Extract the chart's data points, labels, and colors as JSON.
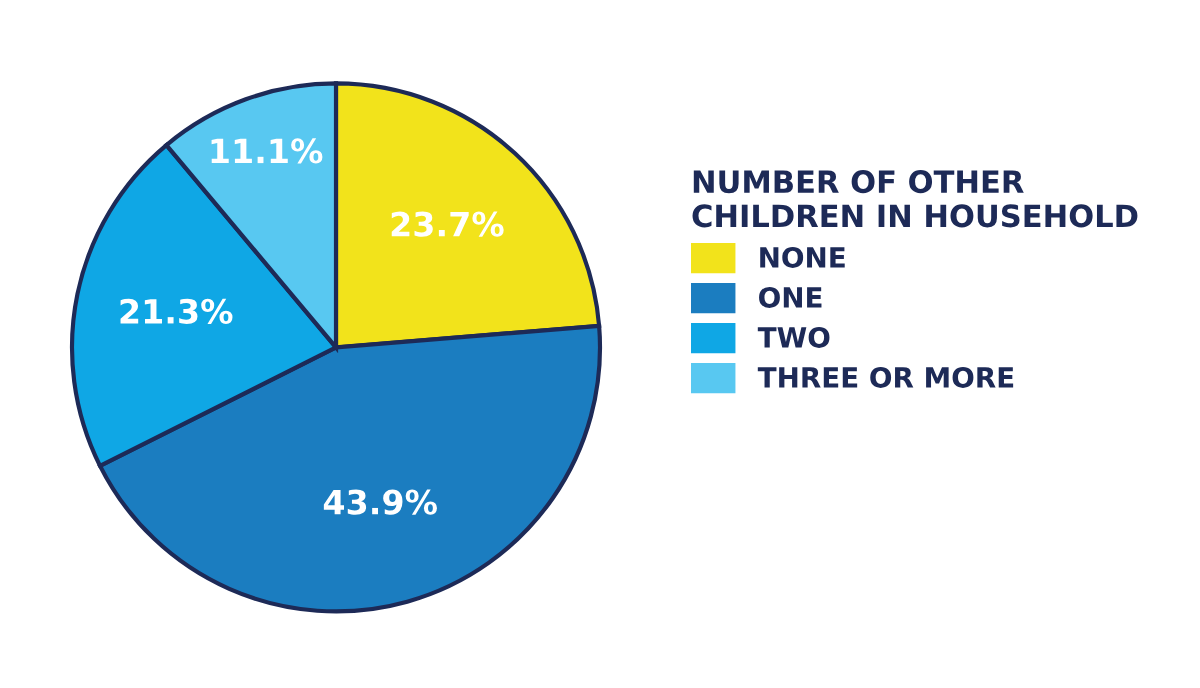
{
  "chart_data": {
    "type": "pie",
    "legend_title": "NUMBER OF OTHER\nCHILDREN IN HOUSEHOLD",
    "categories": [
      "NONE",
      "ONE",
      "TWO",
      "THREE OR MORE"
    ],
    "values": [
      23.7,
      43.9,
      21.3,
      11.1
    ],
    "colors": [
      "#f2e31b",
      "#1b7dc0",
      "#0fa7e5",
      "#58c8f1"
    ],
    "value_labels": [
      "23.7%",
      "43.9%",
      "21.3%",
      "11.1%"
    ],
    "legend": "right"
  }
}
